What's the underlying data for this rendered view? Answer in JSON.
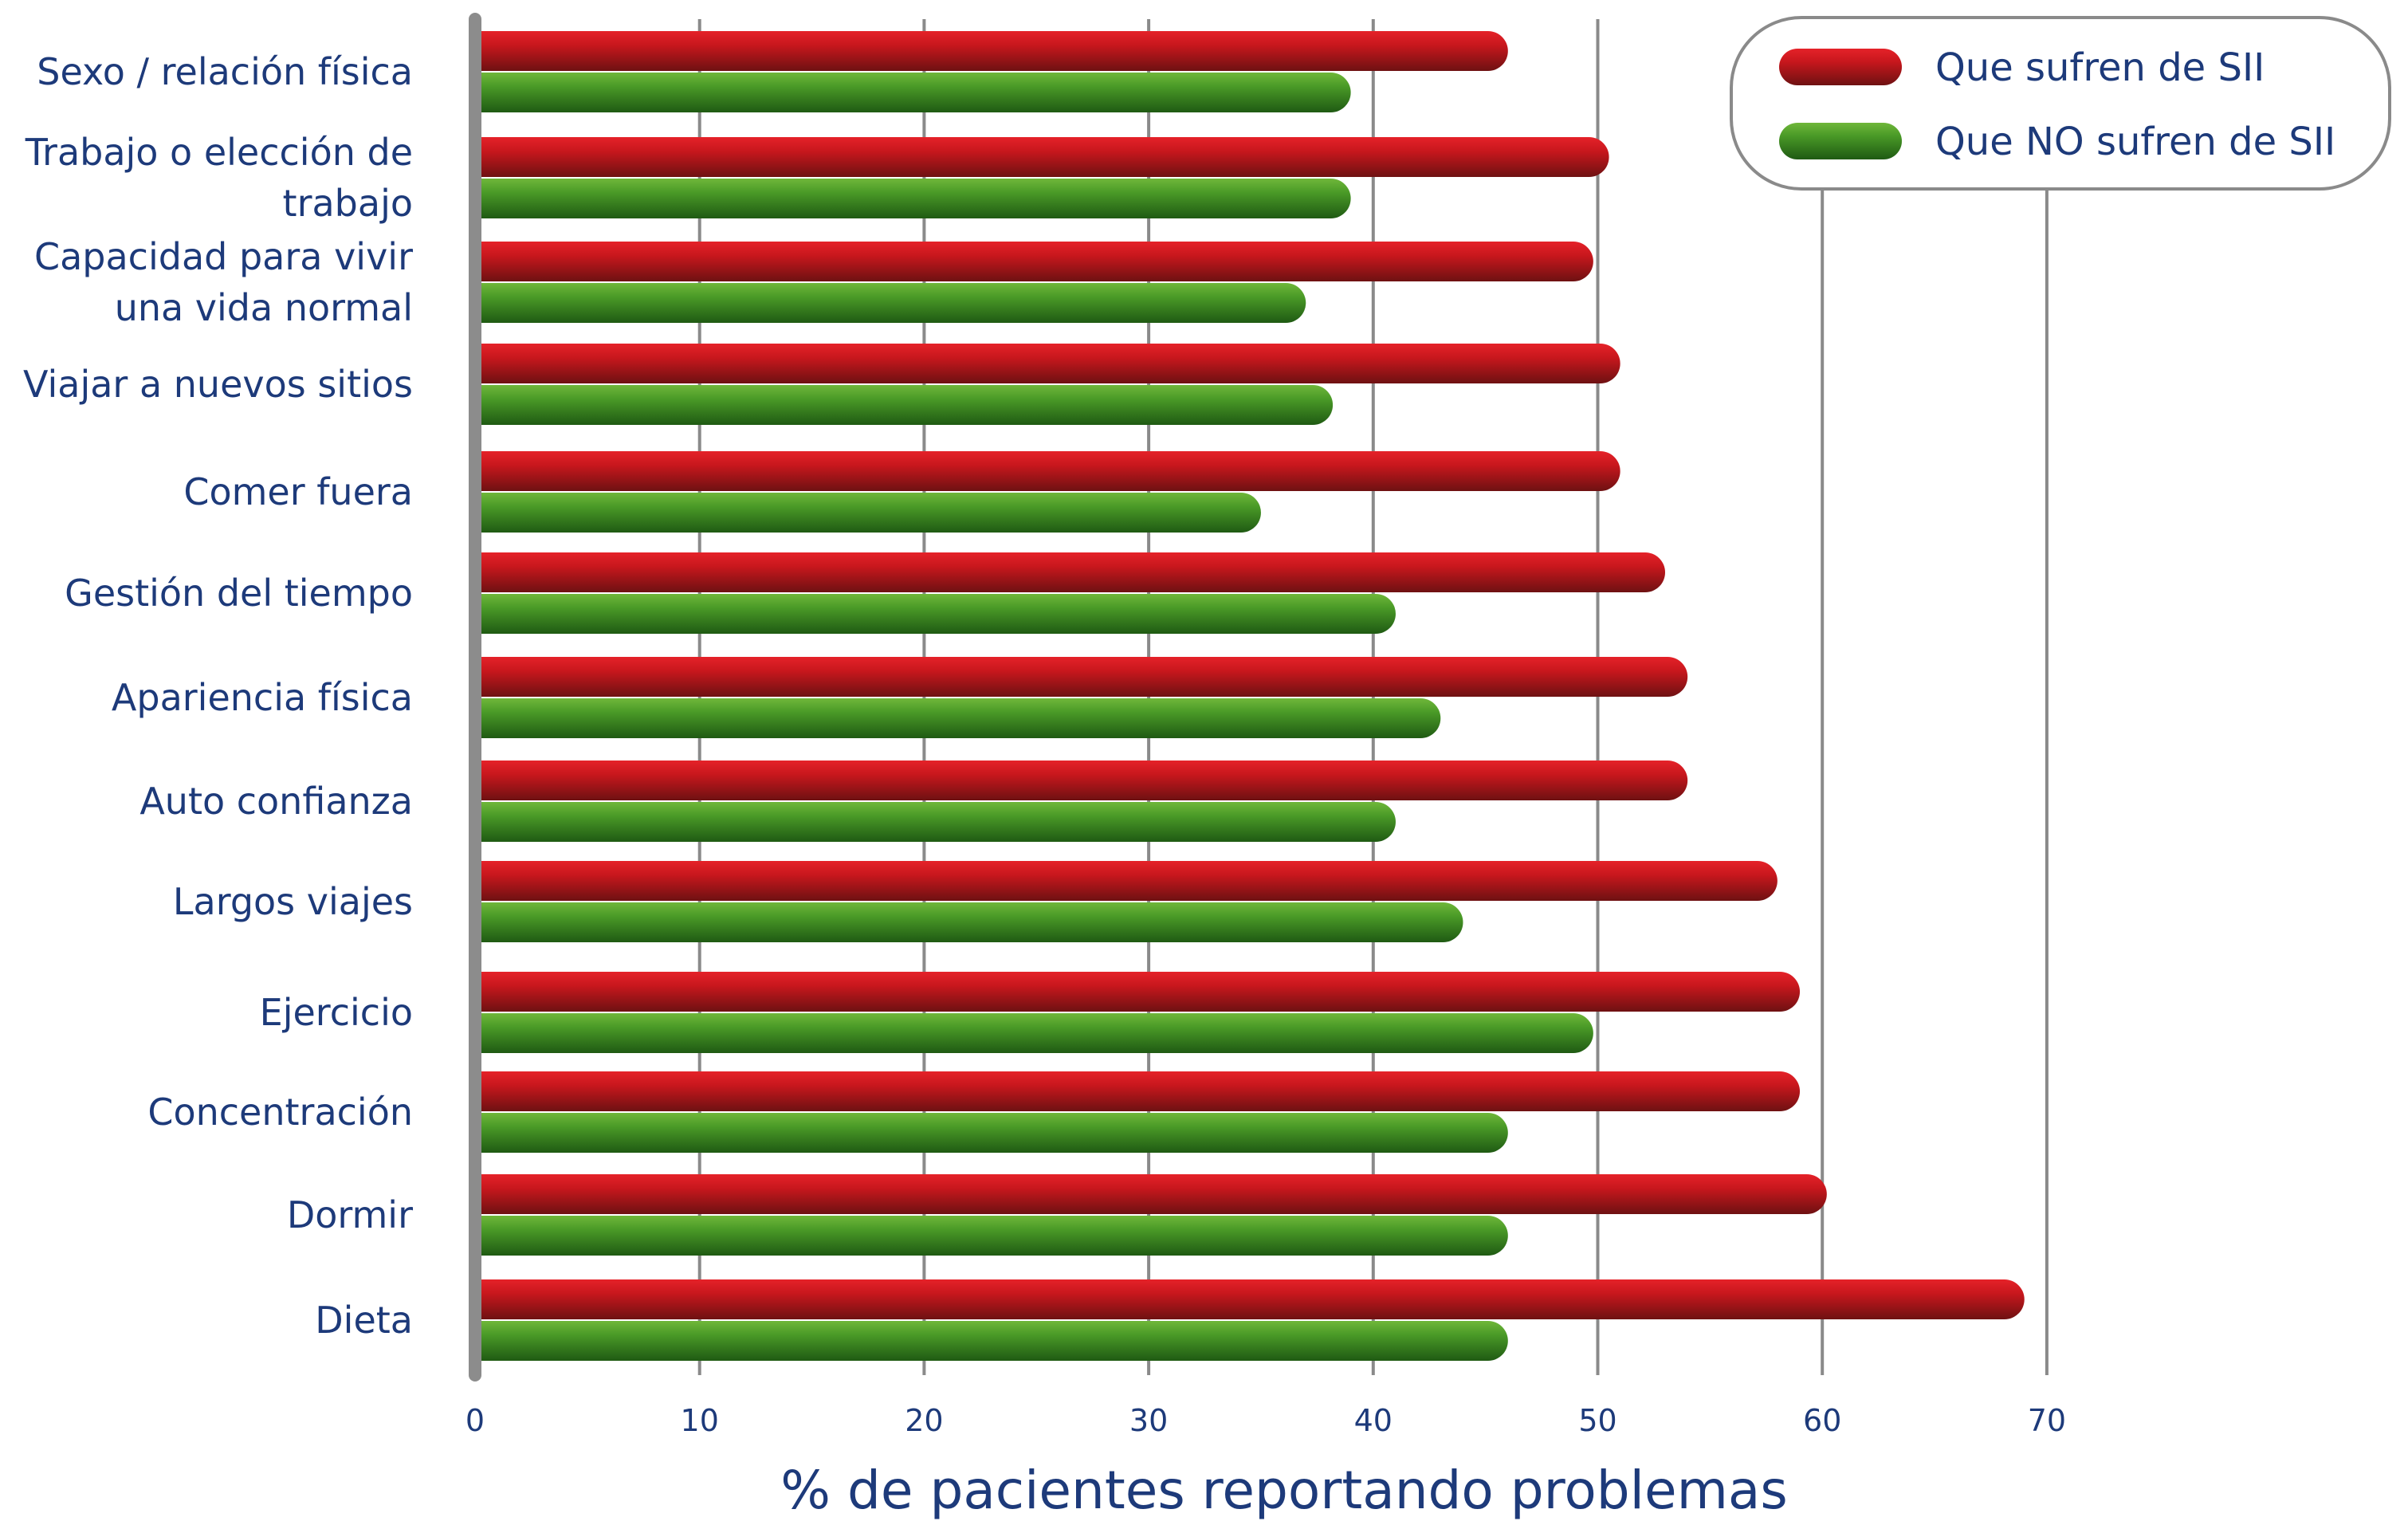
{
  "chart_data": {
    "type": "bar",
    "orientation": "horizontal",
    "categories": [
      [
        "Sexo / relación física"
      ],
      [
        "Trabajo o elección de",
        "trabajo"
      ],
      [
        "Capacidad para vivir",
        "una vida normal"
      ],
      [
        "Viajar a nuevos sitios"
      ],
      [
        "Comer fuera"
      ],
      [
        "Gestión del tiempo"
      ],
      [
        "Apariencia física"
      ],
      [
        "Auto confianza"
      ],
      [
        "Largos viajes"
      ],
      [
        "Ejercicio"
      ],
      [
        "Concentración"
      ],
      [
        "Dormir"
      ],
      [
        "Dieta"
      ]
    ],
    "series": [
      {
        "name": "Que sufren de SII",
        "color": "#c0161c",
        "values": [
          46,
          50.5,
          49.8,
          51,
          51,
          53,
          54,
          54,
          58,
          59,
          59,
          60.2,
          69
        ]
      },
      {
        "name": "Que NO sufren de SII",
        "color": "#3f8c1f",
        "values": [
          39,
          39,
          37,
          38.2,
          35,
          41,
          43,
          41,
          44,
          49.8,
          46,
          46,
          46
        ]
      }
    ],
    "xlim": [
      0,
      70
    ],
    "xticks": [
      0,
      10,
      20,
      30,
      40,
      50,
      60,
      70
    ],
    "xlabel": "% de pacientes reportando problemas",
    "ylabel": "",
    "title": "",
    "grid": "vertical",
    "legend_position": "top-right"
  }
}
